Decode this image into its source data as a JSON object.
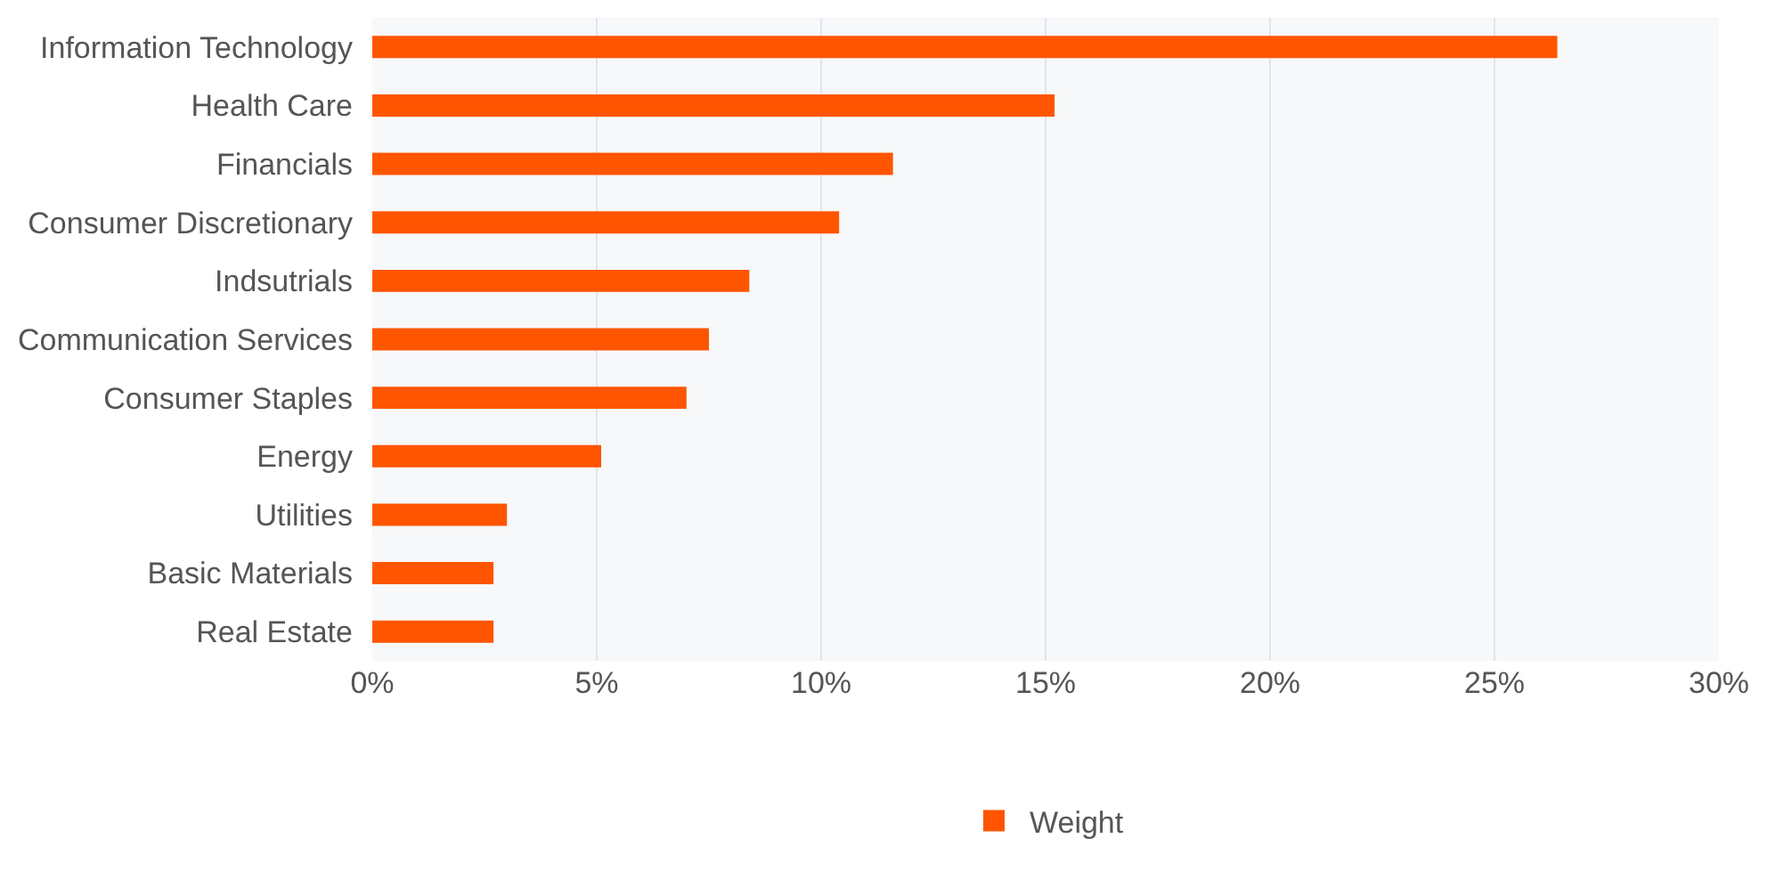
{
  "chart_data": {
    "type": "bar",
    "orientation": "horizontal",
    "categories": [
      "Information Technology",
      "Health Care",
      "Financials",
      "Consumer Discretionary",
      "Indsutrials",
      "Communication Services",
      "Consumer Staples",
      "Energy",
      "Utilities",
      "Basic Materials",
      "Real Estate"
    ],
    "series": [
      {
        "name": "Weight",
        "color": "#ff5500",
        "values": [
          26.4,
          15.2,
          11.6,
          10.4,
          8.4,
          7.5,
          7.0,
          5.1,
          3.0,
          2.7,
          2.7
        ]
      }
    ],
    "xlim": [
      0,
      30
    ],
    "xticks": [
      {
        "value": 0,
        "label": "0%"
      },
      {
        "value": 5,
        "label": "5%"
      },
      {
        "value": 10,
        "label": "10%"
      },
      {
        "value": 15,
        "label": "15%"
      },
      {
        "value": 20,
        "label": "20%"
      },
      {
        "value": 25,
        "label": "25%"
      },
      {
        "value": 30,
        "label": "30%"
      }
    ],
    "grid": "x",
    "legend": "bottom"
  }
}
